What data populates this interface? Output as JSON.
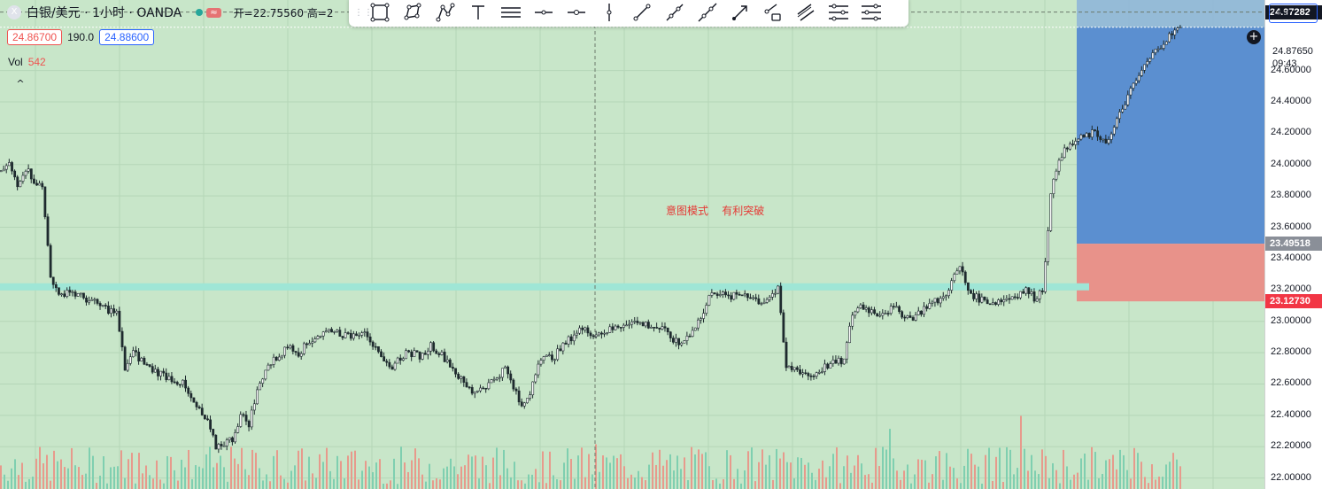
{
  "symbol": {
    "logo_letter": "X",
    "name": "白银/美元 · 1小时 · OANDA",
    "badge": "≈",
    "ohlc_text": "开=22.75560  高=2"
  },
  "bid": "24.86700",
  "spread": "190.0",
  "ask": "24.88600",
  "volume": {
    "label": "Vol",
    "value": "542"
  },
  "collapse_icon": "^",
  "currency": "USD",
  "annotation": "意图模式    有利突破",
  "colors": {
    "background": "#c8e6c9",
    "up": "#26a69a",
    "down": "#ef5350",
    "target_zone": "#5b8fd0",
    "stop_zone": "#e8928a",
    "level_line": "#9fe6d6",
    "candle": "#1e2a2e"
  },
  "toolbar": {
    "icons": [
      "rectangle-icon",
      "polygon-icon",
      "path-icon",
      "text-icon",
      "horizontal-lines-icon",
      "horizontal-line-icon",
      "horizontal-ray-icon",
      "vertical-line-icon",
      "trend-line-icon",
      "ray-icon",
      "extended-line-icon",
      "arrow-icon",
      "info-line-icon",
      "parallel-channel-icon",
      "fib-retracement-icon",
      "pitchfork-icon"
    ]
  },
  "price_labels": {
    "current": "24.97282",
    "last": "24.87650",
    "countdown": "09:43",
    "entry": "23.49518",
    "stop": "23.12730"
  },
  "chart_data": {
    "type": "candlestick",
    "title": "",
    "symbol": "XAG/USD",
    "timeframe": "1h",
    "ylim": [
      21.93,
      25.05
    ],
    "y_ticks": [
      22.0,
      22.2,
      22.4,
      22.6,
      22.8,
      23.0,
      23.2,
      23.4,
      23.6,
      23.8,
      24.0,
      24.2,
      24.4,
      24.6
    ],
    "y_tick_labels": [
      "22.00000",
      "22.20000",
      "22.40000",
      "22.60000",
      "22.80000",
      "23.00000",
      "23.20000",
      "23.40000",
      "23.60000",
      "23.80000",
      "24.00000",
      "24.20000",
      "24.40000",
      "24.60000"
    ],
    "grid": true,
    "series": [
      {
        "name": "price",
        "path": [
          [
            0,
            23.95
          ],
          [
            2,
            24.0
          ],
          [
            4,
            23.88
          ],
          [
            6,
            23.98
          ],
          [
            8,
            23.9
          ],
          [
            10,
            23.85
          ],
          [
            12,
            23.3
          ],
          [
            14,
            23.15
          ],
          [
            16,
            23.2
          ],
          [
            20,
            23.15
          ],
          [
            24,
            23.1
          ],
          [
            28,
            23.05
          ],
          [
            30,
            22.7
          ],
          [
            32,
            22.8
          ],
          [
            36,
            22.7
          ],
          [
            40,
            22.65
          ],
          [
            44,
            22.6
          ],
          [
            46,
            22.5
          ],
          [
            50,
            22.35
          ],
          [
            52,
            22.2
          ],
          [
            56,
            22.25
          ],
          [
            58,
            22.4
          ],
          [
            60,
            22.35
          ],
          [
            62,
            22.55
          ],
          [
            64,
            22.7
          ],
          [
            66,
            22.75
          ],
          [
            68,
            22.8
          ],
          [
            70,
            22.85
          ],
          [
            72,
            22.8
          ],
          [
            76,
            22.9
          ],
          [
            80,
            22.95
          ],
          [
            84,
            22.9
          ],
          [
            88,
            22.95
          ],
          [
            92,
            22.75
          ],
          [
            94,
            22.7
          ],
          [
            98,
            22.8
          ],
          [
            102,
            22.78
          ],
          [
            104,
            22.85
          ],
          [
            108,
            22.75
          ],
          [
            112,
            22.6
          ],
          [
            114,
            22.55
          ],
          [
            118,
            22.6
          ],
          [
            122,
            22.7
          ],
          [
            126,
            22.45
          ],
          [
            128,
            22.55
          ],
          [
            130,
            22.75
          ],
          [
            134,
            22.78
          ],
          [
            138,
            22.9
          ],
          [
            140,
            22.95
          ],
          [
            144,
            22.92
          ],
          [
            148,
            22.95
          ],
          [
            152,
            23.0
          ],
          [
            156,
            22.98
          ],
          [
            160,
            22.95
          ],
          [
            164,
            22.85
          ],
          [
            166,
            22.9
          ],
          [
            170,
            23.05
          ],
          [
            172,
            23.2
          ],
          [
            176,
            23.15
          ],
          [
            180,
            23.18
          ],
          [
            184,
            23.12
          ],
          [
            188,
            23.2
          ],
          [
            190,
            22.7
          ],
          [
            192,
            22.7
          ],
          [
            196,
            22.65
          ],
          [
            200,
            22.72
          ],
          [
            204,
            22.75
          ],
          [
            206,
            23.05
          ],
          [
            208,
            23.1
          ],
          [
            212,
            23.05
          ],
          [
            216,
            23.08
          ],
          [
            220,
            23.02
          ],
          [
            222,
            23.05
          ],
          [
            224,
            23.1
          ],
          [
            228,
            23.15
          ],
          [
            230,
            23.25
          ],
          [
            232,
            23.35
          ],
          [
            234,
            23.2
          ],
          [
            236,
            23.15
          ],
          [
            240,
            23.12
          ],
          [
            244,
            23.15
          ],
          [
            248,
            23.2
          ],
          [
            250,
            23.15
          ],
          [
            252,
            23.2
          ],
          [
            254,
            23.8
          ],
          [
            256,
            24.05
          ],
          [
            260,
            24.15
          ],
          [
            264,
            24.2
          ],
          [
            268,
            24.15
          ],
          [
            272,
            24.4
          ],
          [
            276,
            24.6
          ],
          [
            280,
            24.75
          ],
          [
            284,
            24.85
          ],
          [
            286,
            24.87
          ]
        ]
      },
      {
        "name": "volume",
        "peaks_relative": [
          0.2,
          0.6,
          0.3,
          0.4,
          0.3,
          0.8,
          0.6,
          0.3,
          0.2,
          0.4,
          0.5,
          0.3,
          0.2,
          0.4,
          0.6,
          0.3,
          0.3,
          0.4,
          0.5,
          0.9,
          0.3,
          0.4,
          0.8,
          0.6,
          0.5,
          0.3,
          0.4,
          0.9,
          0.7,
          0.4,
          0.3,
          0.6,
          0.9,
          0.5,
          0.3,
          0.8,
          0.4
        ]
      }
    ],
    "zones": {
      "target_top": 24.8765,
      "entry": 23.49518,
      "stop": 23.1273
    },
    "level_line": 23.22,
    "annotation": "意图模式    有利突破",
    "legend": "none"
  }
}
